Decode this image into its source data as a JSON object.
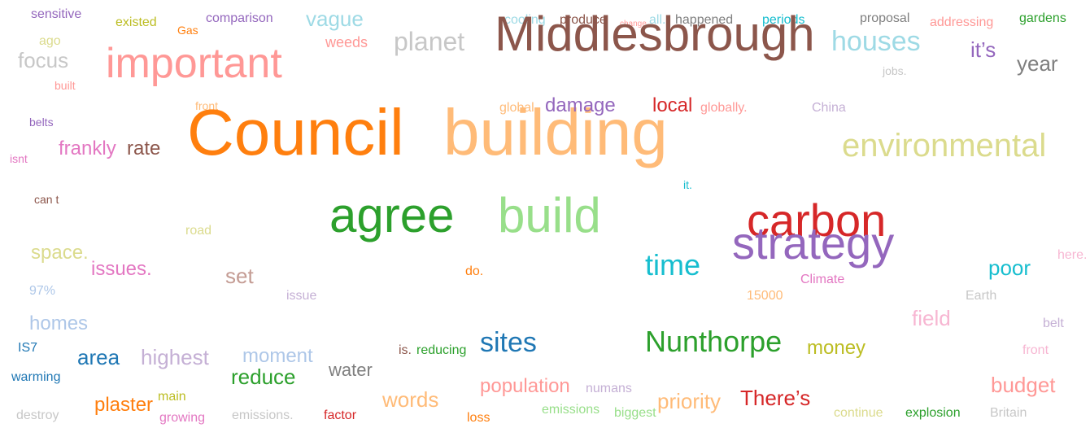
{
  "words": [
    {
      "text": "sensitive",
      "color": "#9467bd"
    },
    {
      "text": "existed",
      "color": "#bcbd22"
    },
    {
      "text": "Gas",
      "color": "#ff7f0e"
    },
    {
      "text": "comparison",
      "color": "#9467bd"
    },
    {
      "text": "vague",
      "color": "#9edae5"
    },
    {
      "text": "cooling",
      "color": "#9edae5"
    },
    {
      "text": "produce",
      "color": "#8c564b"
    },
    {
      "text": "change",
      "color": "#ff9896"
    },
    {
      "text": "all.",
      "color": "#9edae5"
    },
    {
      "text": "happened",
      "color": "#7f7f7f"
    },
    {
      "text": "periods",
      "color": "#17becf"
    },
    {
      "text": "proposal",
      "color": "#7f7f7f"
    },
    {
      "text": "addressing",
      "color": "#ff9896"
    },
    {
      "text": "gardens",
      "color": "#2ca02c"
    },
    {
      "text": "ago",
      "color": "#dbdb8d"
    },
    {
      "text": "focus",
      "color": "#c7c7c7"
    },
    {
      "text": "important",
      "color": "#ff9896"
    },
    {
      "text": "weeds",
      "color": "#ff9896"
    },
    {
      "text": "planet",
      "color": "#c7c7c7"
    },
    {
      "text": "Middlesbrough",
      "color": "#8c564b"
    },
    {
      "text": "houses",
      "color": "#9edae5"
    },
    {
      "text": "it’s",
      "color": "#9467bd"
    },
    {
      "text": "year",
      "color": "#7f7f7f"
    },
    {
      "text": "jobs.",
      "color": "#c7c7c7"
    },
    {
      "text": "built",
      "color": "#ff9896"
    },
    {
      "text": "front",
      "color": "#ffbb78"
    },
    {
      "text": "belts",
      "color": "#9467bd"
    },
    {
      "text": "Council",
      "color": "#ff7f0e"
    },
    {
      "text": "building",
      "color": "#ffbb78"
    },
    {
      "text": "global",
      "color": "#ffbb78"
    },
    {
      "text": "damage",
      "color": "#9467bd"
    },
    {
      "text": "local",
      "color": "#d62728"
    },
    {
      "text": "globally.",
      "color": "#ff9896"
    },
    {
      "text": "China",
      "color": "#c5b0d5"
    },
    {
      "text": "frankly",
      "color": "#e377c2"
    },
    {
      "text": "rate",
      "color": "#8c564b"
    },
    {
      "text": "isnt",
      "color": "#e377c2"
    },
    {
      "text": "environmental",
      "color": "#dbdb8d"
    },
    {
      "text": "it.",
      "color": "#17becf"
    },
    {
      "text": "can t",
      "color": "#8c564b"
    },
    {
      "text": "agree",
      "color": "#2ca02c"
    },
    {
      "text": "build",
      "color": "#98df8a"
    },
    {
      "text": "carbon",
      "color": "#d62728"
    },
    {
      "text": "strategy",
      "color": "#9467bd"
    },
    {
      "text": "road",
      "color": "#dbdb8d"
    },
    {
      "text": "space.",
      "color": "#dbdb8d"
    },
    {
      "text": "issues.",
      "color": "#e377c2"
    },
    {
      "text": "set",
      "color": "#c49c94"
    },
    {
      "text": "do.",
      "color": "#ff7f0e"
    },
    {
      "text": "time",
      "color": "#17becf"
    },
    {
      "text": "poor",
      "color": "#17becf"
    },
    {
      "text": "here.",
      "color": "#f7b6d2"
    },
    {
      "text": "Climate",
      "color": "#e377c2"
    },
    {
      "text": "97%",
      "color": "#aec7e8"
    },
    {
      "text": "issue",
      "color": "#c5b0d5"
    },
    {
      "text": "15000",
      "color": "#ffbb78"
    },
    {
      "text": "Earth",
      "color": "#c7c7c7"
    },
    {
      "text": "homes",
      "color": "#aec7e8"
    },
    {
      "text": "field",
      "color": "#f7b6d2"
    },
    {
      "text": "belt",
      "color": "#c5b0d5"
    },
    {
      "text": "IS7",
      "color": "#1f77b4"
    },
    {
      "text": "area",
      "color": "#1f77b4"
    },
    {
      "text": "highest",
      "color": "#c5b0d5"
    },
    {
      "text": "moment",
      "color": "#aec7e8"
    },
    {
      "text": "is.",
      "color": "#8c564b"
    },
    {
      "text": "reducing",
      "color": "#2ca02c"
    },
    {
      "text": "sites",
      "color": "#1f77b4"
    },
    {
      "text": "Nunthorpe",
      "color": "#2ca02c"
    },
    {
      "text": "money",
      "color": "#bcbd22"
    },
    {
      "text": "front",
      "color": "#f7b6d2"
    },
    {
      "text": "warming",
      "color": "#1f77b4"
    },
    {
      "text": "reduce",
      "color": "#2ca02c"
    },
    {
      "text": "water",
      "color": "#7f7f7f"
    },
    {
      "text": "population",
      "color": "#ff9896"
    },
    {
      "text": "numans",
      "color": "#c5b0d5"
    },
    {
      "text": "budget",
      "color": "#ff9896"
    },
    {
      "text": "plaster",
      "color": "#ff7f0e"
    },
    {
      "text": "main",
      "color": "#bcbd22"
    },
    {
      "text": "destroy",
      "color": "#c7c7c7"
    },
    {
      "text": "growing",
      "color": "#e377c2"
    },
    {
      "text": "emissions.",
      "color": "#c7c7c7"
    },
    {
      "text": "factor",
      "color": "#d62728"
    },
    {
      "text": "words",
      "color": "#ffbb78"
    },
    {
      "text": "loss",
      "color": "#ff7f0e"
    },
    {
      "text": "emissions",
      "color": "#98df8a"
    },
    {
      "text": "biggest",
      "color": "#98df8a"
    },
    {
      "text": "priority",
      "color": "#ffbb78"
    },
    {
      "text": "There’s",
      "color": "#d62728"
    },
    {
      "text": "continue",
      "color": "#dbdb8d"
    },
    {
      "text": "explosion",
      "color": "#2ca02c"
    },
    {
      "text": "Britain",
      "color": "#c7c7c7"
    }
  ]
}
